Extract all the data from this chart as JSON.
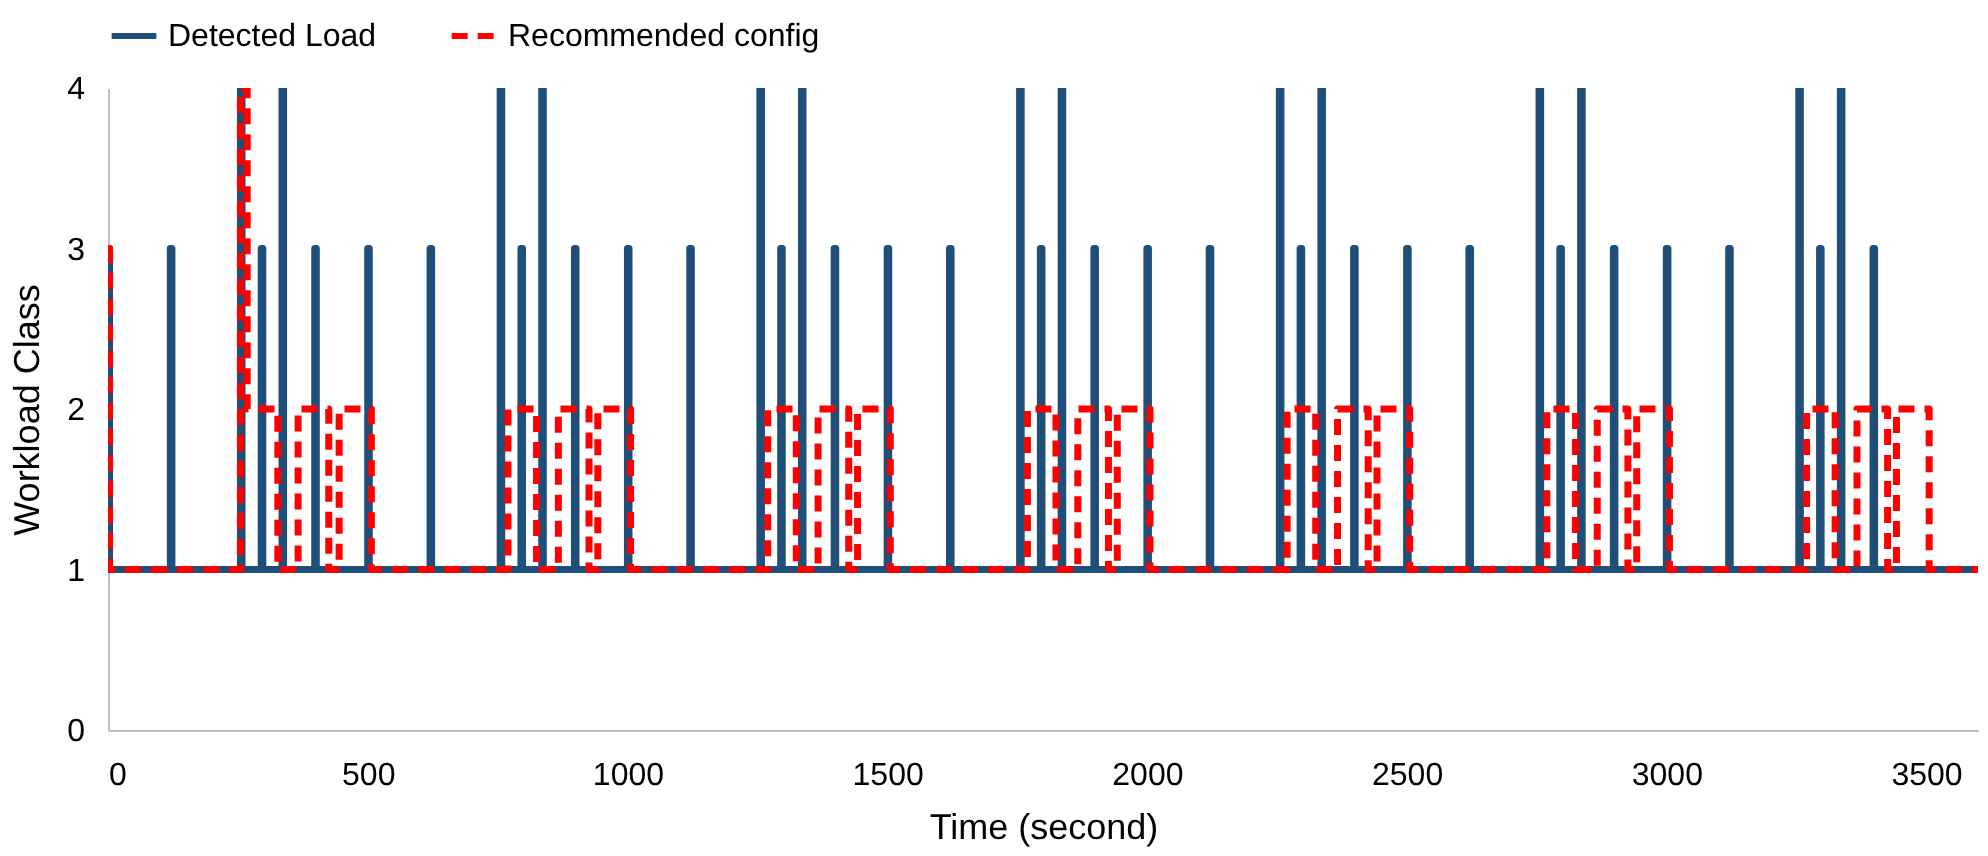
{
  "chart_data": {
    "type": "step",
    "xlabel": "Time (second)",
    "ylabel": "Workload Class",
    "xlim": [
      0,
      3600
    ],
    "xticks": [
      0,
      500,
      1000,
      1500,
      2000,
      2500,
      3000,
      3500
    ],
    "ylim": [
      0,
      4
    ],
    "yticks": [
      0,
      1,
      2,
      3,
      4
    ],
    "grid": false,
    "legend": "top",
    "marker": "none",
    "series": [
      {
        "name": "Detected Load",
        "color": "#1f4e79",
        "line_style": "solid",
        "x": [
          0,
          3,
          120,
          123,
          255,
          258,
          295,
          298,
          335,
          338,
          398,
          401,
          500,
          503,
          620,
          623,
          755,
          758,
          795,
          798,
          835,
          838,
          898,
          901,
          1000,
          1003,
          1120,
          1123,
          1255,
          1258,
          1295,
          1298,
          1335,
          1338,
          1398,
          1401,
          1500,
          1503,
          1620,
          1623,
          1755,
          1758,
          1795,
          1798,
          1835,
          1838,
          1898,
          1901,
          2000,
          2003,
          2120,
          2123,
          2255,
          2258,
          2295,
          2298,
          2335,
          2338,
          2398,
          2401,
          2500,
          2503,
          2620,
          2623,
          2755,
          2758,
          2795,
          2798,
          2835,
          2838,
          2898,
          2901,
          3000,
          3003,
          3120,
          3123,
          3255,
          3258,
          3295,
          3298,
          3335,
          3338,
          3398,
          3401,
          3600
        ],
        "values": [
          3,
          1,
          3,
          1,
          4,
          1,
          3,
          1,
          4,
          1,
          3,
          1,
          3,
          1,
          3,
          1,
          4,
          1,
          3,
          1,
          4,
          1,
          3,
          1,
          3,
          1,
          3,
          1,
          4,
          1,
          3,
          1,
          4,
          1,
          3,
          1,
          3,
          1,
          3,
          1,
          4,
          1,
          3,
          1,
          4,
          1,
          3,
          1,
          3,
          1,
          3,
          1,
          4,
          1,
          3,
          1,
          4,
          1,
          3,
          1,
          3,
          1,
          3,
          1,
          4,
          1,
          3,
          1,
          4,
          1,
          3,
          1,
          3,
          1,
          3,
          1,
          4,
          1,
          3,
          1,
          4,
          1,
          3,
          1,
          1
        ]
      },
      {
        "name": "Recommended config",
        "color": "#ff0000",
        "line_style": "dashed",
        "x": [
          0,
          3,
          255,
          268,
          327,
          366,
          425,
          445,
          507,
          770,
          825,
          867,
          926,
          943,
          1006,
          1270,
          1325,
          1367,
          1426,
          1443,
          1506,
          1770,
          1825,
          1867,
          1926,
          1943,
          2006,
          2270,
          2325,
          2367,
          2426,
          2443,
          2506,
          2770,
          2825,
          2867,
          2926,
          2943,
          3006,
          3270,
          3325,
          3367,
          3426,
          3443,
          3506,
          3600
        ],
        "values": [
          3,
          1,
          4,
          2,
          1,
          2,
          1,
          2,
          1,
          2,
          1,
          2,
          1,
          2,
          1,
          2,
          1,
          2,
          1,
          2,
          1,
          2,
          1,
          2,
          1,
          2,
          1,
          2,
          1,
          2,
          1,
          2,
          1,
          2,
          1,
          2,
          1,
          2,
          1,
          2,
          1,
          2,
          1,
          2,
          1,
          1
        ]
      }
    ]
  }
}
